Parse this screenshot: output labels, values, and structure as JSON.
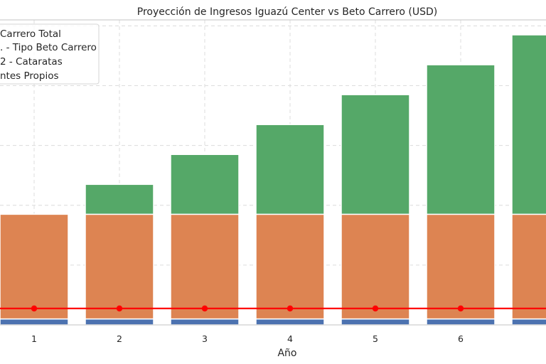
{
  "chart_data": {
    "type": "bar",
    "title": "Proyección de Ingresos Iguazú Center vs Beto Carrero (USD)",
    "xlabel": "Año",
    "ylabel": "",
    "x": [
      1,
      2,
      3,
      4,
      5,
      6,
      7
    ],
    "xticks": [
      "1",
      "2",
      "3",
      "4",
      "5",
      "6"
    ],
    "xlim": [
      0.6,
      7.0
    ],
    "ylim": [
      0,
      10.2
    ],
    "grid": true,
    "legend_position": "top-left",
    "stacked": true,
    "series": [
      {
        "name": "ntes Propios",
        "type": "bar",
        "color": "#4c72b0",
        "values": [
          0.2,
          0.2,
          0.2,
          0.2,
          0.2,
          0.2,
          0.2
        ]
      },
      {
        "name": "2 - Cataratas",
        "type": "bar",
        "color": "#dd8452",
        "values": [
          3.5,
          3.5,
          3.5,
          3.5,
          3.5,
          3.5,
          3.5
        ]
      },
      {
        "name": ". - Tipo Beto Carrero",
        "type": "bar",
        "color": "#55a868",
        "values": [
          0,
          1.0,
          2.0,
          3.0,
          4.0,
          5.0,
          6.0
        ]
      },
      {
        "name": "Carrero Total",
        "type": "line",
        "color": "#ff0000",
        "values": [
          0.55,
          0.55,
          0.55,
          0.55,
          0.55,
          0.55,
          0.55
        ]
      }
    ]
  }
}
